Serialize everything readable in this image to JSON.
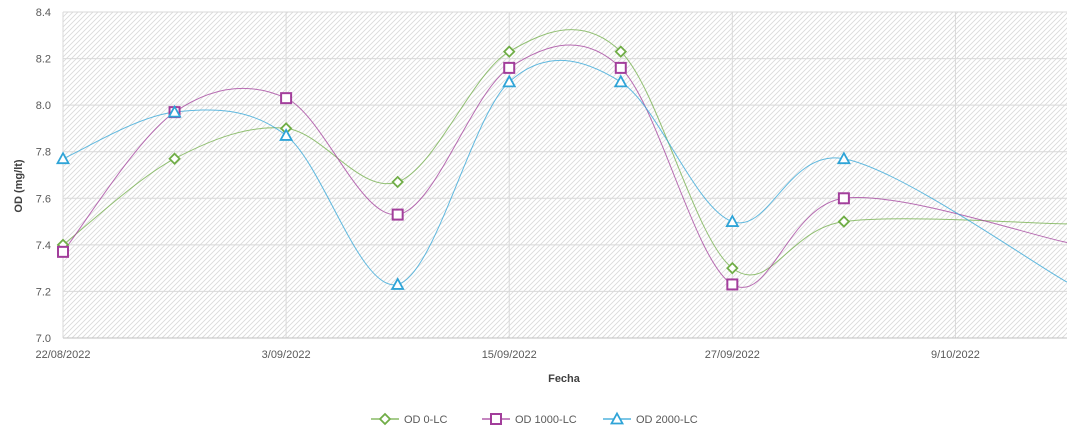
{
  "chart_data": {
    "type": "line",
    "title": "",
    "xlabel": "Fecha",
    "ylabel": "OD (mg/lt)",
    "ylim": [
      7.0,
      8.4
    ],
    "y_ticks": [
      "7.0",
      "7.2",
      "7.4",
      "7.6",
      "7.8",
      "8.0",
      "8.2",
      "8.4"
    ],
    "x_ticks": [
      "22/08/2022",
      "3/09/2022",
      "15/09/2022",
      "27/09/2022",
      "9/10/2022"
    ],
    "x_range": [
      "2022-08-22",
      "2022-10-15"
    ],
    "grid": true,
    "smooth": true,
    "legend_position": "bottom",
    "x": [
      "2022-08-22",
      "2022-08-28",
      "2022-09-03",
      "2022-09-09",
      "2022-09-15",
      "2022-09-21",
      "2022-09-27",
      "2022-10-03",
      "2022-10-09",
      "2022-10-15"
    ],
    "series": [
      {
        "name": "OD 0-LC",
        "color": "#70AD47",
        "marker": "diamond",
        "values": [
          7.4,
          7.77,
          7.9,
          7.67,
          8.23,
          8.23,
          7.3,
          7.5,
          7.49
        ],
        "x": [
          "2022-08-22",
          "2022-08-28",
          "2022-09-03",
          "2022-09-09",
          "2022-09-15",
          "2022-09-21",
          "2022-09-27",
          "2022-10-03",
          "2022-10-15"
        ],
        "marker_x": [
          "2022-08-22",
          "2022-08-28",
          "2022-09-03",
          "2022-09-09",
          "2022-09-15",
          "2022-09-21",
          "2022-09-27",
          "2022-10-03"
        ]
      },
      {
        "name": "OD 1000-LC",
        "color": "#A23E9B",
        "marker": "square",
        "values": [
          7.37,
          7.97,
          8.03,
          7.53,
          8.16,
          8.16,
          7.23,
          7.6,
          7.41
        ],
        "x": [
          "2022-08-22",
          "2022-08-28",
          "2022-09-03",
          "2022-09-09",
          "2022-09-15",
          "2022-09-21",
          "2022-09-27",
          "2022-10-03",
          "2022-10-15"
        ],
        "marker_x": [
          "2022-08-22",
          "2022-08-28",
          "2022-09-03",
          "2022-09-09",
          "2022-09-15",
          "2022-09-21",
          "2022-09-27",
          "2022-10-03"
        ]
      },
      {
        "name": "OD 2000-LC",
        "color": "#2FA4D7",
        "marker": "triangle",
        "values": [
          7.77,
          7.97,
          7.87,
          7.23,
          8.1,
          8.1,
          7.5,
          7.77,
          7.24
        ],
        "x": [
          "2022-08-22",
          "2022-08-28",
          "2022-09-03",
          "2022-09-09",
          "2022-09-15",
          "2022-09-21",
          "2022-09-27",
          "2022-10-03",
          "2022-10-15"
        ],
        "marker_x": [
          "2022-08-22",
          "2022-08-28",
          "2022-09-03",
          "2022-09-09",
          "2022-09-15",
          "2022-09-21",
          "2022-09-27",
          "2022-10-03"
        ]
      }
    ]
  }
}
